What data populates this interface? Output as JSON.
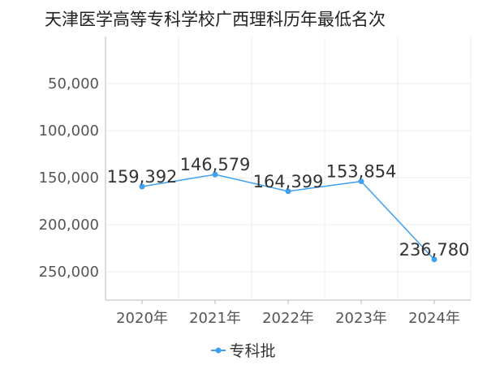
{
  "chart_data": {
    "type": "line",
    "title": "天津医学高等专科学校广西理科历年最低名次",
    "categories": [
      "2020年",
      "2021年",
      "2022年",
      "2023年",
      "2024年"
    ],
    "series": [
      {
        "name": "专科批",
        "values": [
          159392,
          146579,
          164399,
          153854,
          236780
        ],
        "labels": [
          "159,392",
          "146,579",
          "164,399",
          "153,854",
          "236,780"
        ]
      }
    ],
    "y_axis": {
      "inverted": true,
      "range": [
        0,
        280000
      ],
      "ticks": [
        50000,
        100000,
        150000,
        200000,
        250000
      ],
      "tick_labels": [
        "50,000",
        "100,000",
        "150,000",
        "200,000",
        "250,000"
      ]
    },
    "grid": true,
    "legend_position": "bottom-center",
    "colors": {
      "series": "#3fa0f0",
      "grid": "#eeeeee",
      "axis": "#bbbbbb"
    }
  }
}
